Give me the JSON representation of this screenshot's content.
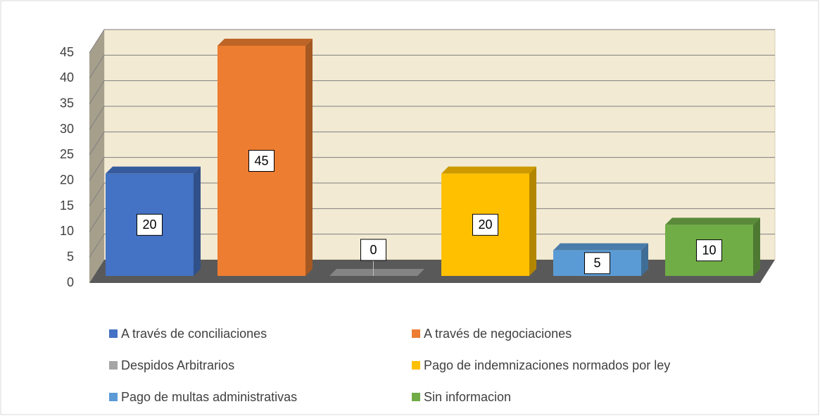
{
  "chart_data": {
    "type": "bar3d",
    "series": [
      {
        "name": "A través de conciliaciones",
        "color": "#4472c4",
        "values": [
          20
        ]
      },
      {
        "name": "A través de negociaciones",
        "color": "#ed7d31",
        "values": [
          45
        ]
      },
      {
        "name": "Despidos Arbitrarios",
        "color": "#a5a5a5",
        "values": [
          0
        ]
      },
      {
        "name": "Pago de indemnizaciones normados por ley",
        "color": "#ffc000",
        "values": [
          20
        ]
      },
      {
        "name": "Pago de multas administrativas",
        "color": "#5b9bd5",
        "values": [
          5
        ]
      },
      {
        "name": "Sin informacion",
        "color": "#70ad47",
        "values": [
          10
        ]
      }
    ],
    "ylim": [
      0,
      45
    ],
    "yticks": [
      0,
      5,
      10,
      15,
      20,
      25,
      30,
      35,
      40,
      45
    ],
    "grid": true,
    "legend": "bottom"
  }
}
